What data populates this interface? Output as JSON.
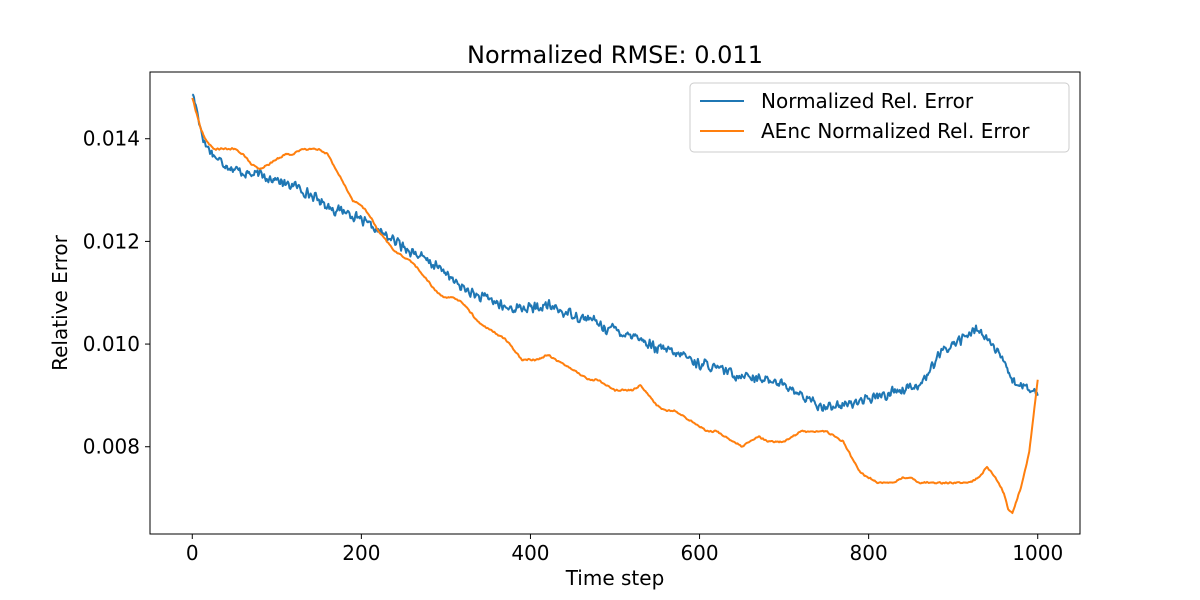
{
  "chart_data": {
    "type": "line",
    "title": "Normalized RMSE: 0.011",
    "xlabel": "Time step",
    "ylabel": "Relative Error",
    "xlim": [
      -50,
      1050
    ],
    "ylim": [
      0.0063,
      0.0153
    ],
    "xticks": [
      0,
      200,
      400,
      600,
      800,
      1000
    ],
    "xtick_labels": [
      "0",
      "200",
      "400",
      "600",
      "800",
      "1000"
    ],
    "yticks": [
      0.008,
      0.01,
      0.012,
      0.014
    ],
    "ytick_labels": [
      "0.008",
      "0.010",
      "0.012",
      "0.014"
    ],
    "grid": false,
    "legend_position": "top-right",
    "series": [
      {
        "name": "Normalized Rel. Error",
        "color": "#1f77b4",
        "noise": 0.00012,
        "x": [
          0,
          5,
          10,
          15,
          20,
          25,
          30,
          40,
          50,
          60,
          70,
          80,
          90,
          100,
          110,
          120,
          130,
          140,
          150,
          160,
          170,
          180,
          190,
          200,
          210,
          220,
          230,
          240,
          250,
          260,
          270,
          280,
          290,
          300,
          310,
          320,
          330,
          340,
          350,
          360,
          370,
          380,
          390,
          400,
          410,
          420,
          430,
          440,
          450,
          460,
          470,
          480,
          490,
          500,
          510,
          520,
          530,
          540,
          550,
          560,
          570,
          580,
          590,
          600,
          610,
          620,
          630,
          640,
          650,
          660,
          670,
          680,
          690,
          700,
          710,
          720,
          730,
          740,
          750,
          760,
          770,
          780,
          790,
          800,
          810,
          820,
          830,
          840,
          850,
          860,
          870,
          880,
          890,
          900,
          910,
          920,
          930,
          940,
          950,
          960,
          970,
          980,
          990,
          1000
        ],
        "values": [
          0.0149,
          0.0146,
          0.0142,
          0.0139,
          0.0138,
          0.0137,
          0.0136,
          0.0135,
          0.0134,
          0.01335,
          0.0133,
          0.0133,
          0.01325,
          0.0132,
          0.0131,
          0.0131,
          0.013,
          0.0129,
          0.0128,
          0.0127,
          0.0126,
          0.0126,
          0.0125,
          0.0124,
          0.0123,
          0.0122,
          0.0121,
          0.012,
          0.0119,
          0.0118,
          0.0117,
          0.0116,
          0.0115,
          0.0114,
          0.0112,
          0.0111,
          0.011,
          0.0109,
          0.0109,
          0.0108,
          0.0107,
          0.0107,
          0.0107,
          0.0107,
          0.0107,
          0.01075,
          0.0107,
          0.0106,
          0.0106,
          0.0105,
          0.0105,
          0.0104,
          0.0103,
          0.0103,
          0.0102,
          0.0102,
          0.0101,
          0.01,
          0.0099,
          0.0099,
          0.0098,
          0.0098,
          0.0097,
          0.0096,
          0.0096,
          0.0095,
          0.0095,
          0.0094,
          0.0094,
          0.0094,
          0.0093,
          0.0093,
          0.0093,
          0.0092,
          0.0091,
          0.009,
          0.0089,
          0.0088,
          0.0088,
          0.0088,
          0.0088,
          0.00885,
          0.0089,
          0.0089,
          0.009,
          0.009,
          0.0091,
          0.0091,
          0.0092,
          0.0092,
          0.0094,
          0.0097,
          0.0099,
          0.01,
          0.0101,
          0.0102,
          0.0103,
          0.0101,
          0.0099,
          0.0096,
          0.0093,
          0.0092,
          0.0091,
          0.009
        ]
      },
      {
        "name": "AEnc Normalized Rel. Error",
        "color": "#ff7f0e",
        "noise": 2e-05,
        "x": [
          0,
          5,
          10,
          15,
          20,
          25,
          30,
          40,
          50,
          60,
          70,
          80,
          90,
          100,
          110,
          120,
          130,
          140,
          150,
          160,
          170,
          180,
          190,
          200,
          210,
          220,
          230,
          240,
          250,
          260,
          270,
          280,
          290,
          300,
          310,
          320,
          330,
          340,
          350,
          360,
          370,
          380,
          390,
          400,
          410,
          420,
          430,
          440,
          450,
          460,
          470,
          480,
          490,
          500,
          510,
          520,
          530,
          540,
          550,
          560,
          570,
          580,
          590,
          600,
          610,
          620,
          630,
          640,
          650,
          660,
          670,
          680,
          690,
          700,
          710,
          720,
          730,
          740,
          750,
          760,
          770,
          780,
          790,
          800,
          810,
          820,
          830,
          840,
          850,
          860,
          870,
          880,
          890,
          900,
          910,
          920,
          930,
          940,
          950,
          960,
          965,
          970,
          980,
          990,
          1000
        ],
        "values": [
          0.0148,
          0.0145,
          0.0142,
          0.014,
          0.0139,
          0.0138,
          0.0138,
          0.0138,
          0.0138,
          0.0137,
          0.0135,
          0.0134,
          0.0135,
          0.0136,
          0.0137,
          0.0137,
          0.0138,
          0.0138,
          0.0138,
          0.0137,
          0.0134,
          0.0131,
          0.0128,
          0.0127,
          0.0125,
          0.0122,
          0.012,
          0.0118,
          0.0117,
          0.0116,
          0.0114,
          0.0112,
          0.011,
          0.0109,
          0.0109,
          0.0108,
          0.0106,
          0.0104,
          0.0103,
          0.0102,
          0.0101,
          0.0099,
          0.0097,
          0.0097,
          0.0097,
          0.0098,
          0.0097,
          0.0096,
          0.0095,
          0.0094,
          0.0093,
          0.0093,
          0.0092,
          0.0091,
          0.0091,
          0.0091,
          0.0092,
          0.009,
          0.0088,
          0.0087,
          0.0087,
          0.0086,
          0.0085,
          0.0084,
          0.0083,
          0.0083,
          0.0082,
          0.0081,
          0.008,
          0.0081,
          0.0082,
          0.0081,
          0.0081,
          0.0081,
          0.0082,
          0.0083,
          0.0083,
          0.0083,
          0.0083,
          0.0082,
          0.0081,
          0.0078,
          0.0075,
          0.0074,
          0.0073,
          0.0073,
          0.0073,
          0.0074,
          0.0074,
          0.0073,
          0.0073,
          0.0073,
          0.0073,
          0.0073,
          0.0073,
          0.0073,
          0.0074,
          0.0076,
          0.0074,
          0.0071,
          0.0068,
          0.0067,
          0.0072,
          0.0079,
          0.0093
        ]
      }
    ]
  }
}
